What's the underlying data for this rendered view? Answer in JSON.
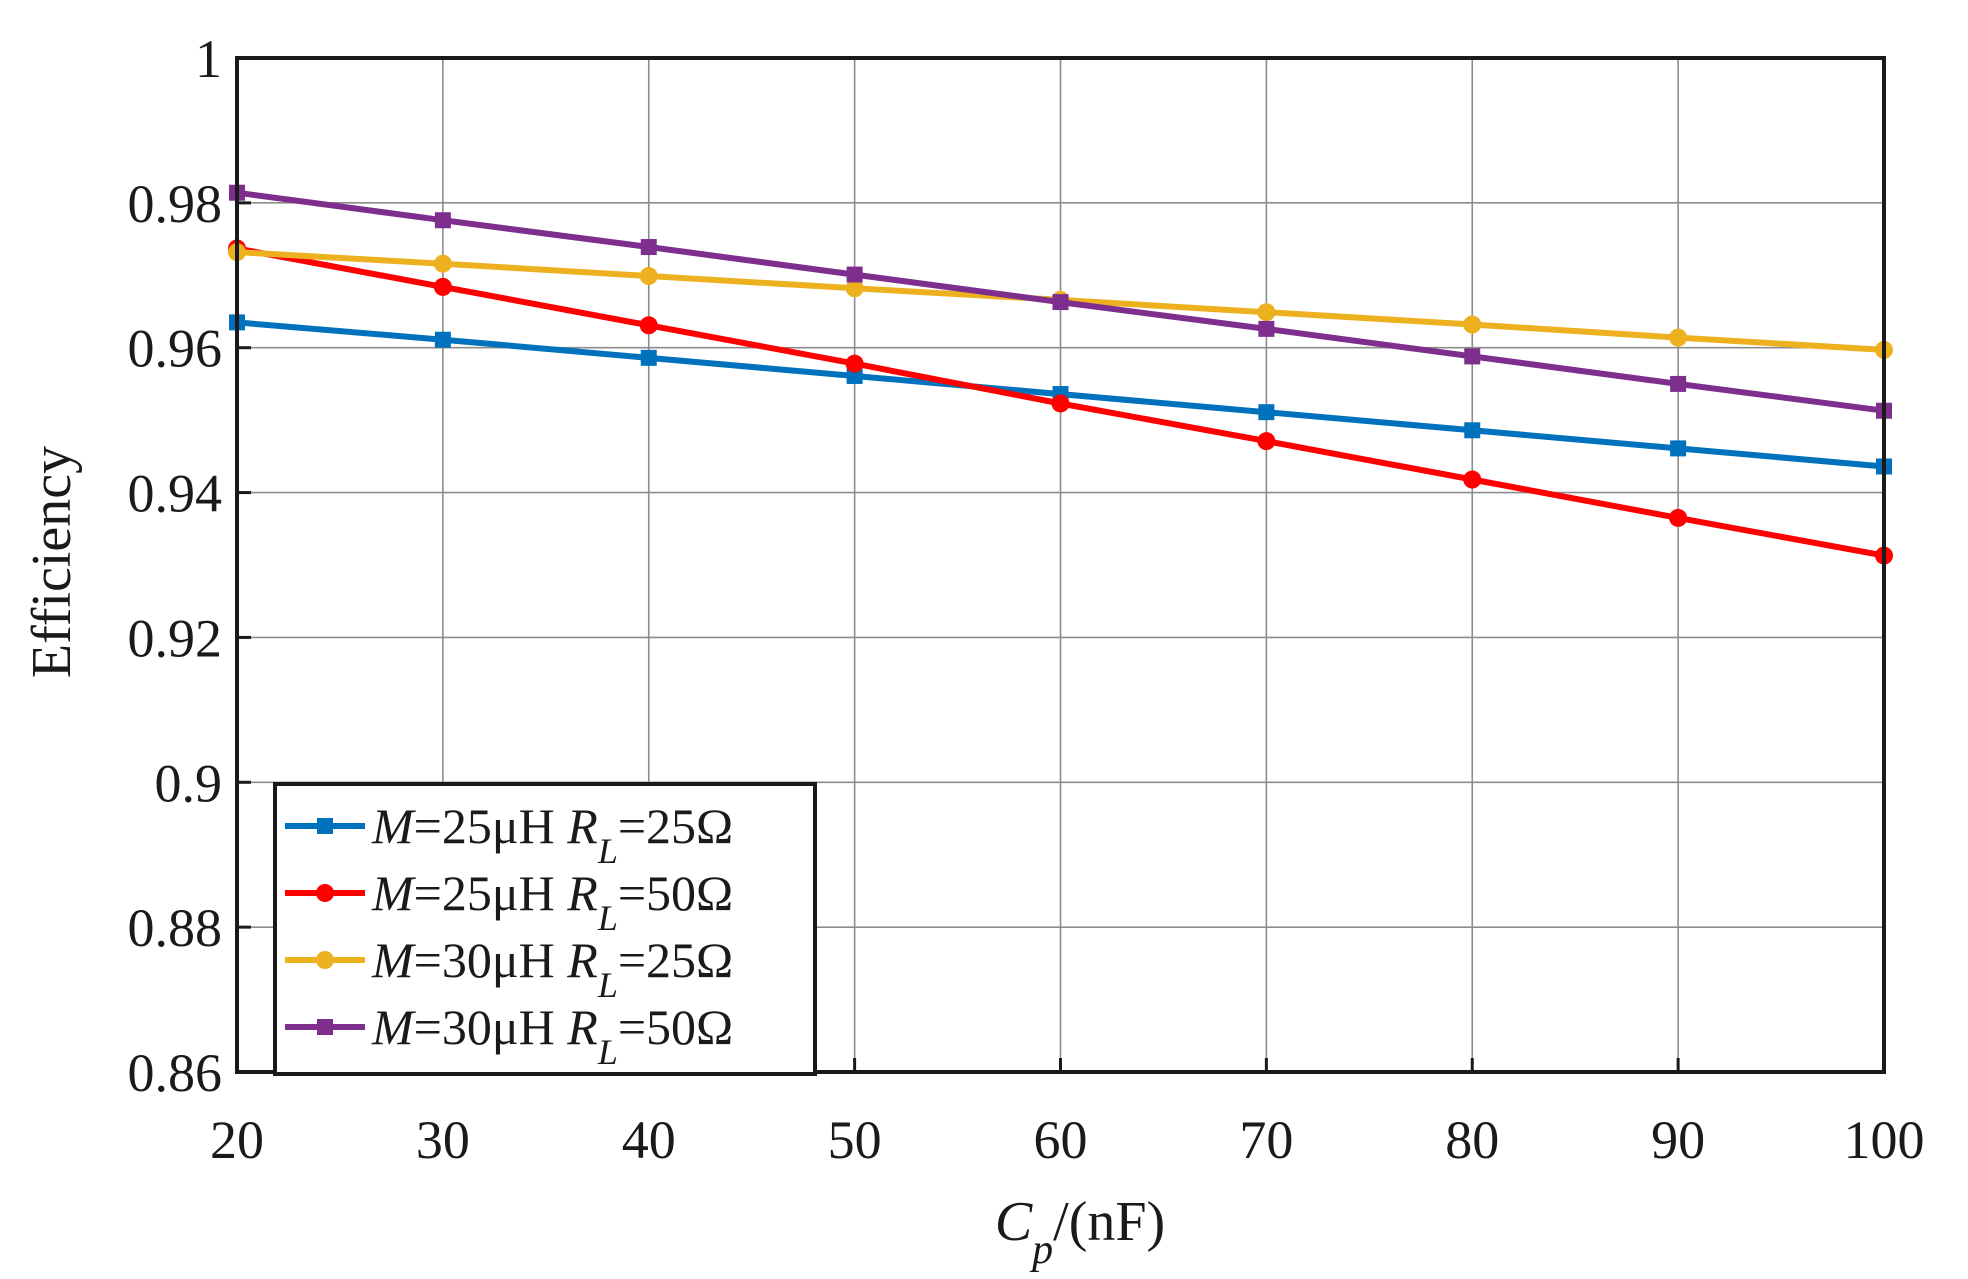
{
  "chart_data": {
    "type": "line",
    "title": "",
    "xlabel": {
      "main": "C",
      "sub": "p",
      "suffix": "/(nF)"
    },
    "ylabel": "Efficiency",
    "xlim": [
      20,
      100
    ],
    "ylim": [
      0.86,
      1.0
    ],
    "grid": true,
    "legend_position": "bottom-left",
    "x_ticks": [
      20,
      30,
      40,
      50,
      60,
      70,
      80,
      90,
      100
    ],
    "x_tick_labels": [
      "20",
      "30",
      "40",
      "50",
      "60",
      "70",
      "80",
      "90",
      "100"
    ],
    "y_ticks": [
      0.86,
      0.88,
      0.9,
      0.92,
      0.94,
      0.96,
      0.98,
      1.0
    ],
    "y_tick_labels": [
      "0.86",
      "0.88",
      "0.9",
      "0.92",
      "0.94",
      "0.96",
      "0.98",
      "1"
    ],
    "x": [
      20,
      30,
      40,
      50,
      60,
      70,
      80,
      90,
      100
    ],
    "series": [
      {
        "name": "M=25μH RL=25Ω",
        "label": {
          "m": "M",
          "mval": "=25μH ",
          "r": "R",
          "rsub": "L",
          "rval": "=25Ω"
        },
        "color": "#0072BD",
        "marker": "square",
        "values": [
          0.9635,
          0.9611,
          0.9586,
          0.9561,
          0.9536,
          0.9511,
          0.9486,
          0.9461,
          0.9436
        ]
      },
      {
        "name": "M=25μH RL=50Ω",
        "label": {
          "m": "M",
          "mval": "=25μH ",
          "r": "R",
          "rsub": "L",
          "rval": "=50Ω"
        },
        "color": "#FF0000",
        "marker": "circle",
        "values": [
          0.9737,
          0.9684,
          0.9631,
          0.9578,
          0.9523,
          0.9471,
          0.9418,
          0.9365,
          0.9313
        ]
      },
      {
        "name": "M=30μH RL=25Ω",
        "label": {
          "m": "M",
          "mval": "=30μH ",
          "r": "R",
          "rsub": "L",
          "rval": "=25Ω"
        },
        "color": "#EDB120",
        "marker": "circle",
        "values": [
          0.9732,
          0.9716,
          0.9699,
          0.9682,
          0.9666,
          0.9649,
          0.9632,
          0.9614,
          0.9597
        ]
      },
      {
        "name": "M=30μH RL=50Ω",
        "label": {
          "m": "M",
          "mval": "=30μH ",
          "r": "R",
          "rsub": "L",
          "rval": "=50Ω"
        },
        "color": "#7E2F8E",
        "marker": "square",
        "values": [
          0.9814,
          0.9776,
          0.9739,
          0.9701,
          0.9663,
          0.9626,
          0.9588,
          0.955,
          0.9513
        ]
      }
    ]
  }
}
